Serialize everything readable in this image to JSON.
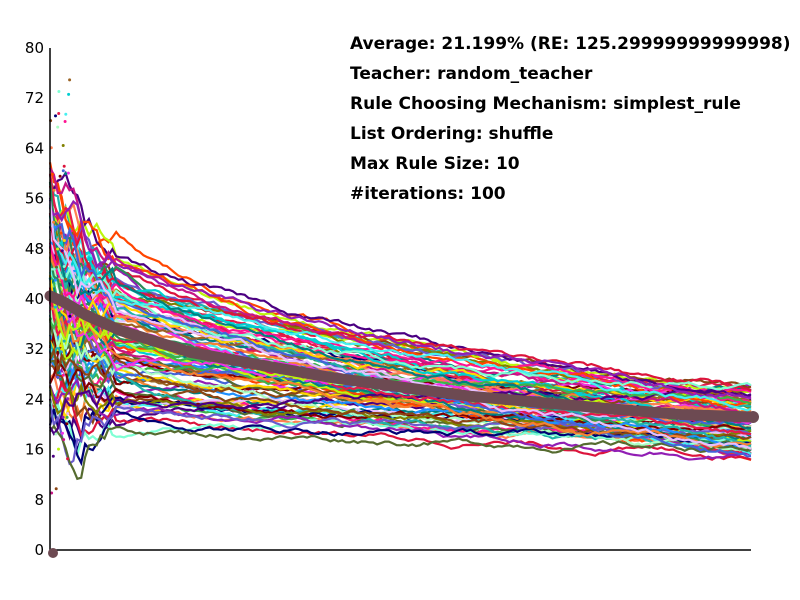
{
  "info": {
    "average": "Average: 21.199% (RE: 125.29999999999998)",
    "teacher": "Teacher: random_teacher",
    "rule_mechanism": "Rule Choosing Mechanism: simplest_rule",
    "list_ordering": "List Ordering: shuffle",
    "max_rule_size": "Max Rule Size: 10",
    "iterations": "#iterations: 100"
  },
  "chart_data": {
    "type": "line",
    "title": "",
    "xlabel": "",
    "ylabel": "",
    "ylim": [
      0,
      80
    ],
    "yticks": [
      "0",
      "8",
      "16",
      "24",
      "32",
      "40",
      "48",
      "56",
      "64",
      "72",
      "80"
    ],
    "x_tick_labels": false,
    "series_count": 100,
    "series_end_range": [
      15,
      26
    ],
    "series_start_range": [
      9,
      80
    ],
    "average_series": {
      "x": [
        0,
        0.02,
        0.05,
        0.1,
        0.2,
        0.3,
        0.4,
        0.5,
        0.6,
        0.7,
        0.8,
        0.9,
        1.0
      ],
      "values": [
        40.5,
        39.5,
        37.5,
        35.0,
        31.5,
        29.5,
        27.5,
        26.0,
        24.5,
        23.5,
        22.5,
        21.6,
        21.2
      ],
      "color": "#6d4a52"
    },
    "markers": {
      "start_bottom": 0,
      "end_average": 21.2
    },
    "palette": [
      "#e6194b",
      "#3cb44b",
      "#4363d8",
      "#f58231",
      "#911eb4",
      "#46f0f0",
      "#f032e6",
      "#bcf60c",
      "#008080",
      "#e6beff",
      "#9a6324",
      "#800000",
      "#aaffc3",
      "#808000",
      "#000075",
      "#ff7f50",
      "#2e8b57",
      "#6a5acd",
      "#ff1493",
      "#1e90ff",
      "#ffd700",
      "#00ced1",
      "#8b4513",
      "#ff4500",
      "#556b2f",
      "#c71585",
      "#20b2aa",
      "#4b0082",
      "#dc143c",
      "#7fffd4"
    ]
  }
}
